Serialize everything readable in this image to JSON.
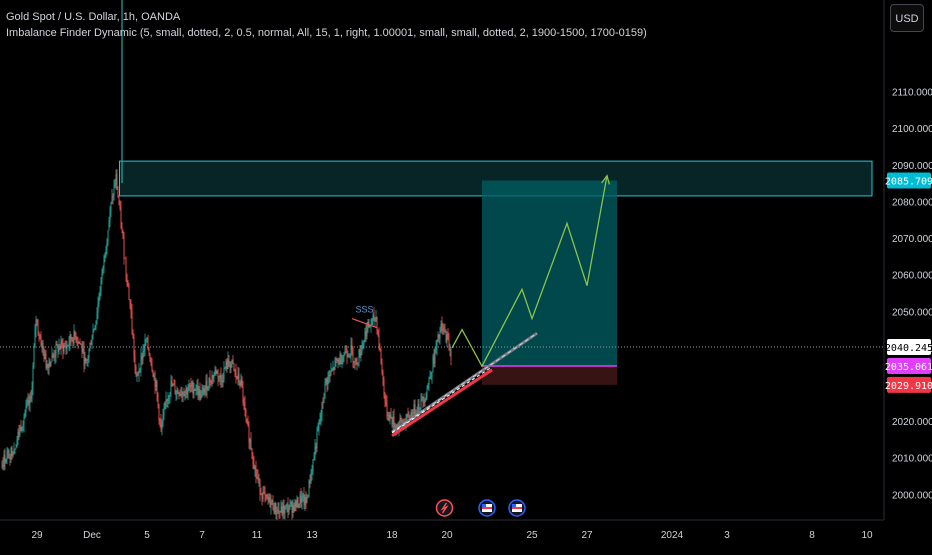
{
  "legend": {
    "symbol": "Gold Spot / U.S. Dollar, 1h, OANDA",
    "indicator": "Imbalance Finder Dynamic (5, small, dotted, 2, 0.5, normal, All, 15, 1, right, 1.00001, small, small, dotted, 2, 1900-1500, 1700-0159)"
  },
  "currency_button": "USD",
  "chart_data": {
    "type": "candlestick",
    "ylim": [
      1993,
      2135
    ],
    "y_ticks": [
      "2000.000",
      "2010.000",
      "2020.000",
      "2030.000",
      "2040.000",
      "2050.000",
      "2060.000",
      "2070.000",
      "2080.000",
      "2090.000",
      "2100.000",
      "2110.000"
    ],
    "x_ticks": [
      {
        "label": "29",
        "slot": 7
      },
      {
        "label": "Dec",
        "slot": 18
      },
      {
        "label": "5",
        "slot": 29
      },
      {
        "label": "7",
        "slot": 40
      },
      {
        "label": "11",
        "slot": 51
      },
      {
        "label": "13",
        "slot": 62
      },
      {
        "label": "18",
        "slot": 78
      },
      {
        "label": "20",
        "slot": 89
      },
      {
        "label": "25",
        "slot": 106
      },
      {
        "label": "27",
        "slot": 117
      },
      {
        "label": "2024",
        "slot": 134
      },
      {
        "label": "3",
        "slot": 145
      },
      {
        "label": "8",
        "slot": 162
      },
      {
        "label": "10",
        "slot": 173
      }
    ],
    "candle_path": [
      [
        0,
        2008
      ],
      [
        3,
        2015
      ],
      [
        6,
        2027
      ],
      [
        7,
        2047
      ],
      [
        9,
        2036
      ],
      [
        12,
        2040
      ],
      [
        15,
        2044
      ],
      [
        17,
        2036
      ],
      [
        19,
        2048
      ],
      [
        21,
        2070
      ],
      [
        23,
        2085
      ],
      [
        24,
        2075
      ],
      [
        26,
        2048
      ],
      [
        27,
        2032
      ],
      [
        29,
        2042
      ],
      [
        31,
        2030
      ],
      [
        32,
        2018
      ],
      [
        34,
        2030
      ],
      [
        36,
        2028
      ],
      [
        38,
        2030
      ],
      [
        40,
        2027
      ],
      [
        42,
        2033
      ],
      [
        44,
        2032
      ],
      [
        46,
        2036
      ],
      [
        48,
        2030
      ],
      [
        49,
        2020
      ],
      [
        51,
        2005
      ],
      [
        53,
        1999
      ],
      [
        55,
        1997
      ],
      [
        58,
        1996
      ],
      [
        61,
        1998
      ],
      [
        65,
        2030
      ],
      [
        67,
        2036
      ],
      [
        69,
        2040
      ],
      [
        71,
        2037
      ],
      [
        73,
        2044
      ],
      [
        75,
        2047
      ],
      [
        76,
        2035
      ],
      [
        77,
        2022
      ],
      [
        79,
        2018
      ],
      [
        81,
        2021
      ],
      [
        83,
        2024
      ],
      [
        85,
        2028
      ],
      [
        86,
        2033
      ],
      [
        87,
        2039
      ],
      [
        88,
        2046
      ],
      [
        89,
        2042
      ],
      [
        90,
        2040
      ]
    ],
    "spike": {
      "index": 24,
      "high": 2135,
      "low": 2085
    },
    "sss_level": {
      "label": "SSS",
      "start_index": 70,
      "end_index": 75,
      "start_value": 2048,
      "end_value": 2045.5
    },
    "supply_zone": {
      "start_index": 23.5,
      "end_index": 174,
      "top": 2091,
      "bottom": 2081.5
    },
    "long_position": {
      "start_index": 96,
      "end_index": 123,
      "target": 2085.7,
      "entry": 2035.061,
      "stop": 2029.91
    },
    "trendline_red": {
      "from": [
        78,
        2016
      ],
      "to": [
        98,
        2034
      ]
    },
    "trendline_gray": {
      "from": [
        78,
        2017
      ],
      "to": [
        107,
        2044
      ]
    },
    "projection": [
      [
        90,
        2040
      ],
      [
        92,
        2045
      ],
      [
        96,
        2035
      ],
      [
        104,
        2056
      ],
      [
        106,
        2048
      ],
      [
        113,
        2074
      ],
      [
        117,
        2057
      ],
      [
        121,
        2087
      ]
    ],
    "current_price": 2040.245,
    "price_labels": [
      {
        "value": 2085.709,
        "text": "2085.709",
        "bg": "#00bcd4",
        "fg": "#ffffff"
      },
      {
        "value": 2040.245,
        "text": "2040.245",
        "bg": "#ffffff",
        "fg": "#000000"
      },
      {
        "value": 2035.061,
        "text": "2035.061",
        "bg": "#e040fb",
        "fg": "#ffffff"
      },
      {
        "value": 2029.91,
        "text": "2029.910",
        "bg": "#f23645",
        "fg": "#ffffff"
      }
    ],
    "event_markers": [
      {
        "slot": 88.5,
        "kind": "flash-icon",
        "color": "#ff5252"
      },
      {
        "slot": 97,
        "kind": "us-flag-icon",
        "color": "#2962ff"
      },
      {
        "slot": 103,
        "kind": "us-flag-icon",
        "color": "#2962ff"
      }
    ],
    "colors": {
      "up": "#26a69a",
      "down": "#ef5350",
      "zone": "#26c6da",
      "target_fill": "#006064",
      "stop_fill": "#3a1414",
      "projection": "#8bc34a",
      "axis_text": "#d1d4dc"
    }
  }
}
